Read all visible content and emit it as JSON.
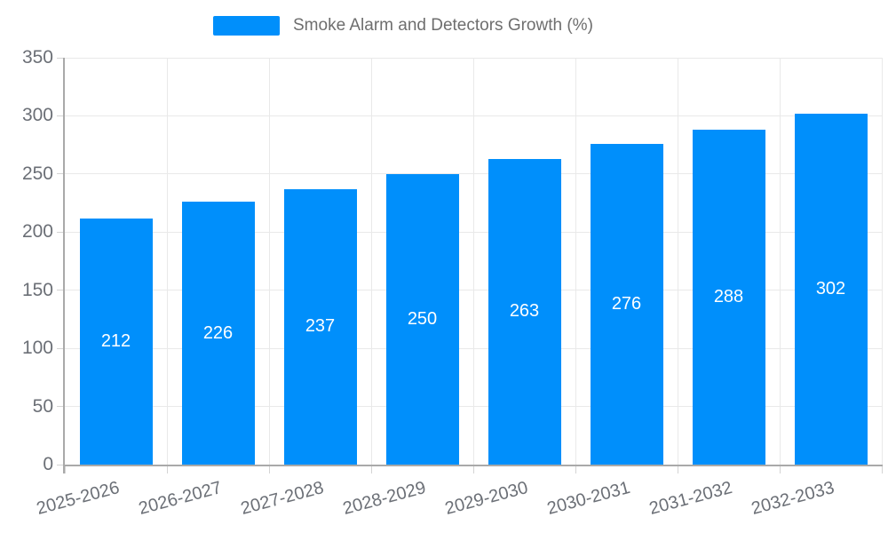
{
  "legend": {
    "label": "Smoke Alarm and Detectors Growth (%)"
  },
  "colors": {
    "bar": "#008FFB",
    "bar_label": "#ffffff",
    "legend_text": "#6e6e6e",
    "axis_label": "#6b6f76",
    "gridline": "#e9e9e9",
    "axis_line": "#a9a9a9"
  },
  "chart_data": {
    "type": "bar",
    "title": "Smoke Alarm and Detectors Growth (%)",
    "categories": [
      "2025-2026",
      "2026-2027",
      "2027-2028",
      "2028-2029",
      "2029-2030",
      "2030-2031",
      "2031-2032",
      "2032-2033"
    ],
    "series": [
      {
        "name": "Smoke Alarm and Detectors Growth (%)",
        "values": [
          212,
          226,
          237,
          250,
          263,
          276,
          288,
          302
        ]
      }
    ],
    "values": [
      212,
      226,
      237,
      250,
      263,
      276,
      288,
      302
    ],
    "xlabel": "",
    "ylabel": "",
    "ylim": [
      0,
      350
    ],
    "ytick_step": 50,
    "yticks": [
      "0",
      "50",
      "100",
      "150",
      "200",
      "250",
      "300",
      "350"
    ],
    "grid": true,
    "legend_position": "top",
    "bar_labels_position": "center",
    "xlabel_rotation_deg": -15
  }
}
